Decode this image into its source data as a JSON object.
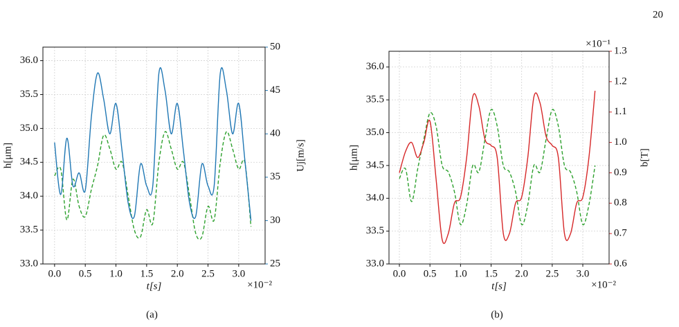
{
  "page_number": "20",
  "chart_data": [
    {
      "type": "line",
      "caption": "(a)",
      "xlabel": "t[s]",
      "ylabel": "h[μm]",
      "y2label": "Uj[m/s]",
      "x_offset_label": "×10⁻²",
      "grid": true,
      "xlim": [
        -0.19,
        3.43
      ],
      "xticks": [
        {
          "value": 0,
          "label": "0.0"
        },
        0.5,
        {
          "value": 1,
          "label": "1.0"
        },
        1.5,
        {
          "value": 2,
          "label": "2.0"
        },
        2.5,
        {
          "value": 3,
          "label": "3.0"
        }
      ],
      "ylim": [
        33.0,
        36.2
      ],
      "yticks": [
        {
          "value": 33,
          "label": "33.0"
        },
        33.5,
        {
          "value": 34,
          "label": "34.0"
        },
        34.5,
        {
          "value": 35,
          "label": "35.0"
        },
        35.5,
        {
          "value": 36,
          "label": "36.0"
        }
      ],
      "y2lim": [
        25,
        50
      ],
      "y2ticks": [
        25,
        30,
        35,
        40,
        45,
        50
      ],
      "y2color": "#1f77b4",
      "x": [
        0,
        0.1,
        0.2,
        0.3,
        0.4,
        0.5,
        0.6,
        0.7,
        0.8,
        0.9,
        1.0,
        1.1,
        1.2,
        1.3,
        1.4,
        1.5,
        1.6,
        1.7,
        1.8,
        1.9,
        2.0,
        2.1,
        2.2,
        2.3,
        2.4,
        2.5,
        2.6,
        2.7,
        2.8,
        2.9,
        3.0,
        3.1,
        3.2
      ],
      "series": [
        {
          "color": "#2ca02c",
          "linestyle": "dashed",
          "values": [
            34.3,
            34.4,
            33.65,
            34.25,
            33.85,
            33.7,
            34.1,
            34.45,
            34.9,
            34.7,
            34.4,
            34.5,
            34.0,
            33.5,
            33.4,
            33.8,
            33.6,
            34.5,
            34.95,
            34.7,
            34.4,
            34.5,
            34.0,
            33.45,
            33.4,
            33.85,
            33.65,
            34.5,
            34.95,
            34.7,
            34.4,
            34.5,
            33.55
          ]
        },
        {
          "color": "#1f77b4",
          "linestyle": "solid",
          "axis": "y2",
          "values": [
            39.0,
            33.0,
            39.5,
            34.0,
            35.5,
            33.5,
            42,
            47.0,
            44,
            40,
            43.5,
            38,
            32,
            30.5,
            36.5,
            34,
            34,
            47,
            45,
            40,
            43.5,
            38,
            32,
            30.5,
            36.5,
            34,
            34,
            47,
            45,
            40,
            43.5,
            37,
            30
          ]
        }
      ]
    },
    {
      "type": "line",
      "caption": "(b)",
      "xlabel": "t[s]",
      "ylabel": "h[μm]",
      "y2label": "b[T]",
      "x_offset_label": "×10⁻²",
      "y2_offset_label": "×10⁻¹",
      "grid": true,
      "xlim": [
        -0.17,
        3.43
      ],
      "xticks": [
        {
          "value": 0,
          "label": "0.0"
        },
        0.5,
        {
          "value": 1,
          "label": "1.0"
        },
        1.5,
        {
          "value": 2,
          "label": "2.0"
        },
        2.5,
        {
          "value": 3,
          "label": "3.0"
        }
      ],
      "ylim": [
        33.0,
        36.24
      ],
      "yticks": [
        {
          "value": 33,
          "label": "33.0"
        },
        33.5,
        {
          "value": 34,
          "label": "34.0"
        },
        34.5,
        {
          "value": 35,
          "label": "35.0"
        },
        35.5,
        {
          "value": 36,
          "label": "36.0"
        }
      ],
      "y2lim": [
        0.6,
        1.3
      ],
      "y2ticks": [
        0.6,
        0.7,
        0.8,
        0.9,
        {
          "value": 1,
          "label": "1.0"
        },
        1.1,
        1.2,
        1.3
      ],
      "y2color": "#d62728",
      "x": [
        0,
        0.1,
        0.2,
        0.3,
        0.4,
        0.5,
        0.6,
        0.7,
        0.8,
        0.9,
        1.0,
        1.1,
        1.2,
        1.3,
        1.4,
        1.5,
        1.6,
        1.7,
        1.8,
        1.9,
        2.0,
        2.1,
        2.2,
        2.3,
        2.4,
        2.5,
        2.6,
        2.7,
        2.8,
        2.9,
        3.0,
        3.1,
        3.2
      ],
      "series": [
        {
          "color": "#2ca02c",
          "linestyle": "dashed",
          "values": [
            34.3,
            34.45,
            33.95,
            34.45,
            34.9,
            35.3,
            35.1,
            34.5,
            34.4,
            34.1,
            33.6,
            33.9,
            34.5,
            34.4,
            34.9,
            35.35,
            35.1,
            34.5,
            34.4,
            34.1,
            33.6,
            33.9,
            34.5,
            34.4,
            34.9,
            35.35,
            35.1,
            34.5,
            34.4,
            34.1,
            33.6,
            33.9,
            34.5
          ]
        },
        {
          "color": "#d62728",
          "linestyle": "solid",
          "axis": "y2",
          "values": [
            0.9,
            0.97,
            1.0,
            0.95,
            1.0,
            1.07,
            0.88,
            0.68,
            0.7,
            0.8,
            0.82,
            0.95,
            1.15,
            1.12,
            1.01,
            0.99,
            0.95,
            0.7,
            0.7,
            0.8,
            0.82,
            0.95,
            1.15,
            1.13,
            1.02,
            0.99,
            0.95,
            0.7,
            0.7,
            0.8,
            0.82,
            0.95,
            1.17
          ]
        }
      ]
    }
  ]
}
